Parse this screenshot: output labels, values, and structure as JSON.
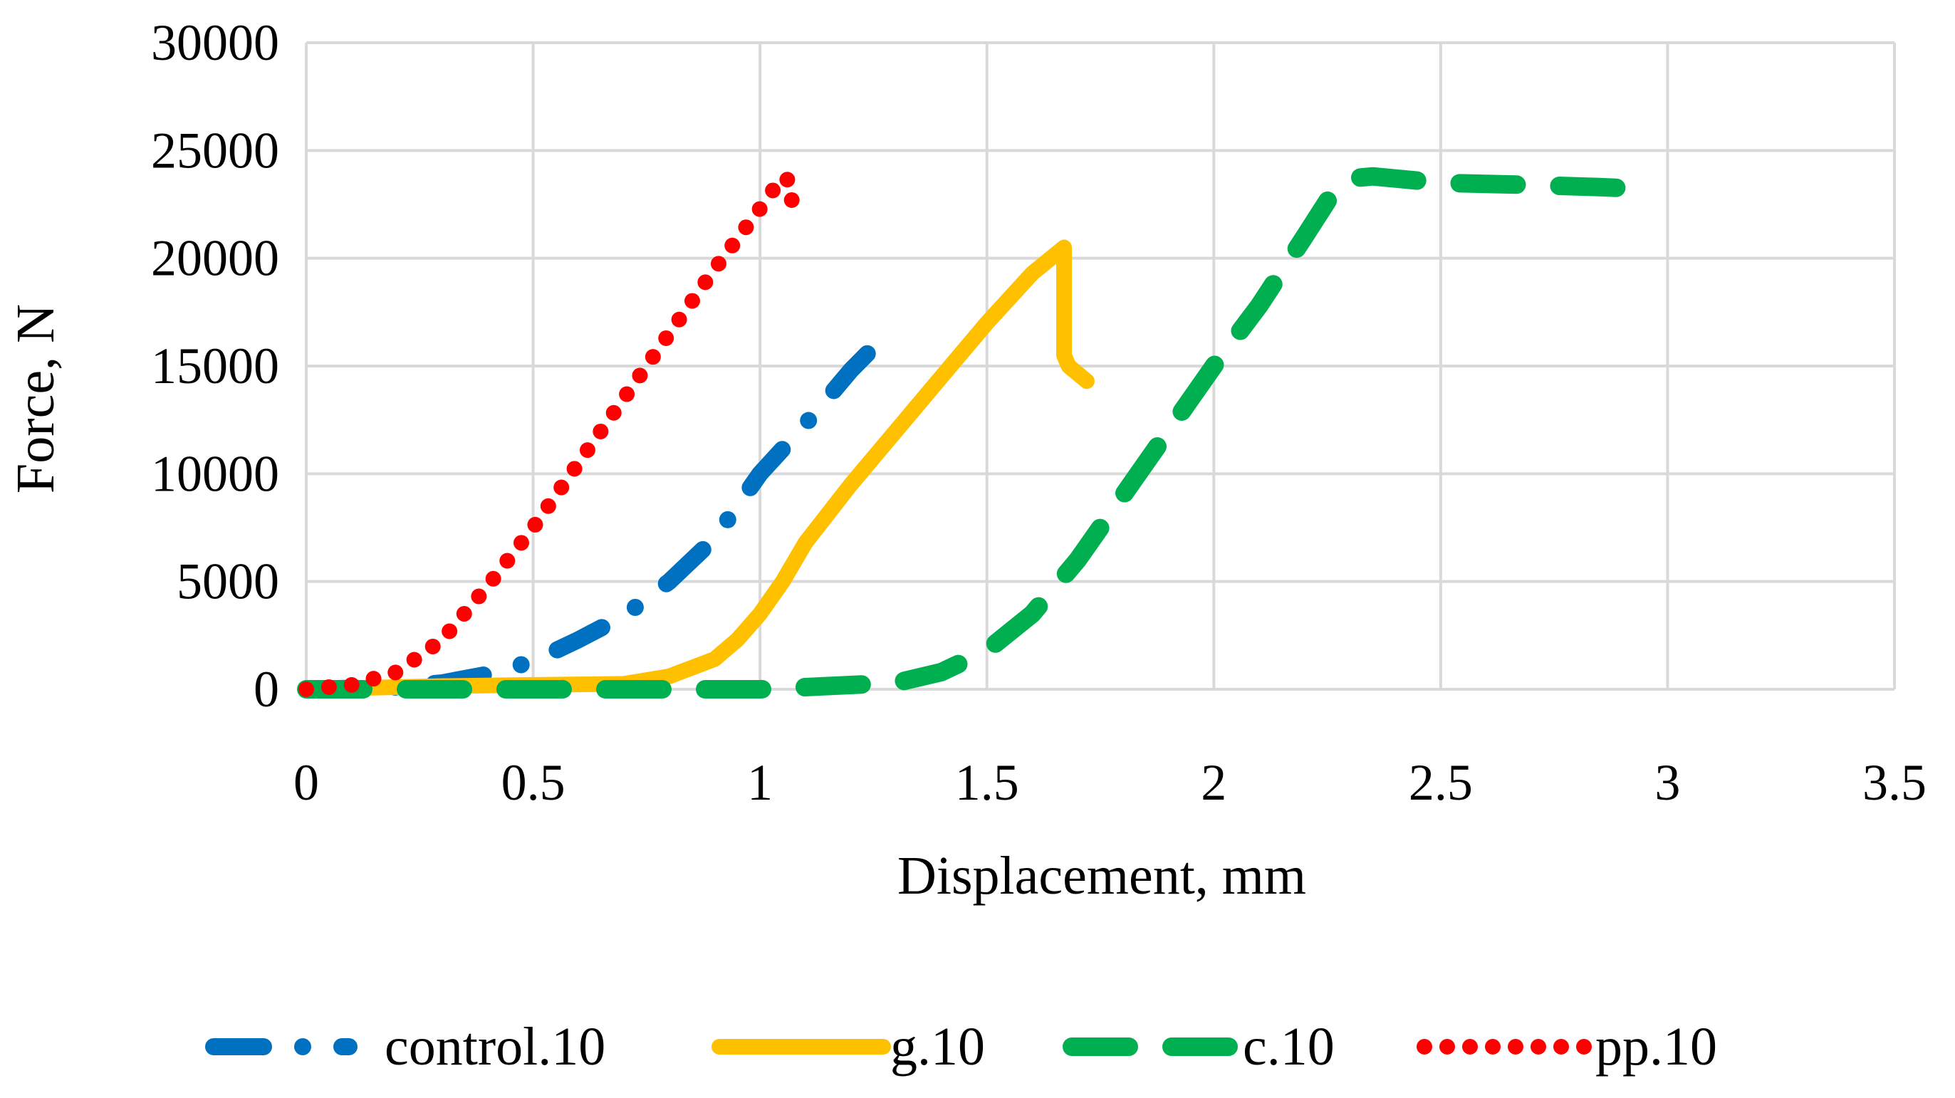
{
  "chart_data": {
    "type": "line",
    "title": "",
    "xlabel": "Displacement, mm",
    "ylabel": "Force, N",
    "xlim": [
      0,
      3.5
    ],
    "ylim": [
      0,
      30000
    ],
    "x_ticks": [
      0,
      0.5,
      1,
      1.5,
      2,
      2.5,
      3,
      3.5
    ],
    "x_tick_labels": [
      "0",
      "0.5",
      "1",
      "1.5",
      "2",
      "2.5",
      "3",
      "3.5"
    ],
    "y_ticks": [
      0,
      5000,
      10000,
      15000,
      20000,
      25000,
      30000
    ],
    "y_tick_labels": [
      "0",
      "5000",
      "10000",
      "15000",
      "20000",
      "25000",
      "30000"
    ],
    "grid": true,
    "legend_position": "bottom",
    "series": [
      {
        "name": "control.10",
        "color": "#0070c0",
        "style": "dash-dot",
        "x": [
          0,
          0.2,
          0.3,
          0.4,
          0.5,
          0.6,
          0.7,
          0.8,
          0.9,
          1.0,
          1.1,
          1.2,
          1.28
        ],
        "y": [
          0,
          100,
          300,
          700,
          1300,
          2300,
          3400,
          5000,
          7000,
          10000,
          12300,
          14800,
          16500
        ]
      },
      {
        "name": "g.10",
        "color": "#ffc000",
        "style": "solid",
        "x": [
          0,
          0.3,
          0.5,
          0.7,
          0.8,
          0.9,
          0.95,
          1.0,
          1.05,
          1.1,
          1.2,
          1.3,
          1.4,
          1.5,
          1.6,
          1.67,
          1.67,
          1.68,
          1.72
        ],
        "y": [
          0,
          150,
          200,
          250,
          600,
          1400,
          2300,
          3500,
          5000,
          6800,
          9500,
          12000,
          14500,
          17000,
          19300,
          20500,
          15500,
          15000,
          14300
        ]
      },
      {
        "name": "c.10",
        "color": "#00b050",
        "style": "dash",
        "x": [
          0,
          0.5,
          1.0,
          1.3,
          1.4,
          1.5,
          1.6,
          1.7,
          1.8,
          1.9,
          2.0,
          2.1,
          2.2,
          2.27,
          2.3,
          2.35,
          2.5,
          2.7,
          2.85,
          2.97
        ],
        "y": [
          0,
          0,
          0,
          300,
          800,
          1800,
          3500,
          6000,
          9000,
          12000,
          15000,
          17800,
          21000,
          23300,
          23700,
          23800,
          23500,
          23400,
          23300,
          23200
        ]
      },
      {
        "name": "pp.10",
        "color": "#ff0000",
        "style": "dot",
        "x": [
          0,
          0.1,
          0.2,
          0.3,
          0.4,
          0.5,
          0.6,
          0.7,
          0.8,
          0.9,
          1.0,
          1.05,
          1.07,
          1.07
        ],
        "y": [
          0,
          200,
          800,
          2300,
          4800,
          7500,
          10500,
          13500,
          16500,
          19500,
          22300,
          23800,
          23500,
          21800
        ]
      }
    ]
  }
}
